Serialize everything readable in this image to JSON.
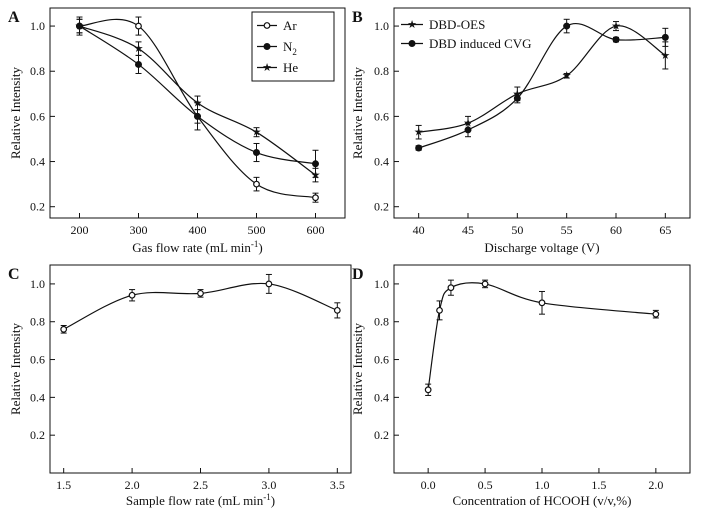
{
  "chart_data": [
    {
      "type": "line",
      "panel_label": "A",
      "xlabel": "Gas flow rate (mL min-1)",
      "xlabel_main": "Gas flow rate (mL min",
      "xlabel_sup": "-1",
      "xlabel_end": ")",
      "ylabel": "Relative Intensity",
      "xlim": [
        150,
        650
      ],
      "ylim": [
        0.15,
        1.08
      ],
      "xticks": [
        200,
        300,
        400,
        500,
        600
      ],
      "yticks": [
        0.2,
        0.4,
        0.6,
        0.8,
        1.0
      ],
      "legend_position": "top-right",
      "x": [
        200,
        300,
        400,
        500,
        600
      ],
      "series": [
        {
          "name": "Ar",
          "marker": "open-circle",
          "values": [
            1.0,
            1.0,
            0.6,
            0.3,
            0.24
          ],
          "errors": [
            0.03,
            0.04,
            0.03,
            0.03,
            0.02
          ]
        },
        {
          "name": "N2",
          "name_main": "N",
          "name_sub": "2",
          "marker": "filled-circle",
          "values": [
            1.0,
            0.83,
            0.6,
            0.44,
            0.39
          ],
          "errors": [
            0.04,
            0.04,
            0.06,
            0.04,
            0.06
          ]
        },
        {
          "name": "He",
          "marker": "star",
          "values": [
            1.0,
            0.9,
            0.66,
            0.53,
            0.34
          ],
          "errors": [
            0.03,
            0.03,
            0.03,
            0.02,
            0.03
          ]
        }
      ]
    },
    {
      "type": "line",
      "panel_label": "B",
      "xlabel": "Discharge voltage (V)",
      "ylabel": "Relative Intensity",
      "xlim": [
        37.5,
        67.5
      ],
      "ylim": [
        0.15,
        1.08
      ],
      "xticks": [
        40,
        45,
        50,
        55,
        60,
        65
      ],
      "yticks": [
        0.2,
        0.4,
        0.6,
        0.8,
        1.0
      ],
      "legend_position": "top-left",
      "x": [
        40,
        45,
        50,
        55,
        60,
        65
      ],
      "series": [
        {
          "name": "DBD-OES",
          "marker": "star",
          "values": [
            0.53,
            0.57,
            0.7,
            0.78,
            1.0,
            0.87
          ],
          "errors": [
            0.03,
            0.03,
            0.03,
            0.01,
            0.02,
            0.06
          ]
        },
        {
          "name": "DBD induced CVG",
          "marker": "filled-circle",
          "values": [
            0.46,
            0.54,
            0.68,
            1.0,
            0.94,
            0.95
          ],
          "errors": [
            0.01,
            0.03,
            0.02,
            0.03,
            0.01,
            0.04
          ]
        }
      ]
    },
    {
      "type": "line",
      "panel_label": "C",
      "xlabel": "Sample flow rate (mL min-1)",
      "xlabel_main": "Sample flow rate (mL min",
      "xlabel_sup": "-1",
      "xlabel_end": ")",
      "ylabel": "Relative Intensity",
      "xlim": [
        1.4,
        3.6
      ],
      "ylim": [
        0.0,
        1.1
      ],
      "xticks": [
        1.5,
        2.0,
        2.5,
        3.0,
        3.5
      ],
      "xtick_labels": [
        "1.5",
        "2.0",
        "2.5",
        "3.0",
        "3.5"
      ],
      "yticks": [
        0.2,
        0.4,
        0.6,
        0.8,
        1.0
      ],
      "x": [
        1.5,
        2.0,
        2.5,
        3.0,
        3.5
      ],
      "series": [
        {
          "marker": "open-circle",
          "values": [
            0.76,
            0.94,
            0.95,
            1.0,
            0.86
          ],
          "errors": [
            0.02,
            0.03,
            0.02,
            0.05,
            0.04
          ]
        }
      ]
    },
    {
      "type": "line",
      "panel_label": "D",
      "xlabel": "Concentration of HCOOH (v/v,%)",
      "ylabel": "Relative Intensity",
      "xlim": [
        -0.3,
        2.3
      ],
      "ylim": [
        0.0,
        1.1
      ],
      "xticks": [
        0.0,
        0.5,
        1.0,
        1.5,
        2.0
      ],
      "xtick_labels": [
        "0.0",
        "0.5",
        "1.0",
        "1.5",
        "2.0"
      ],
      "yticks": [
        0.2,
        0.4,
        0.6,
        0.8,
        1.0
      ],
      "x": [
        0.0,
        0.1,
        0.2,
        0.5,
        1.0,
        2.0
      ],
      "series": [
        {
          "marker": "open-circle",
          "values": [
            0.44,
            0.86,
            0.98,
            1.0,
            0.9,
            0.84
          ],
          "errors": [
            0.03,
            0.05,
            0.04,
            0.02,
            0.06,
            0.02
          ]
        }
      ]
    }
  ]
}
